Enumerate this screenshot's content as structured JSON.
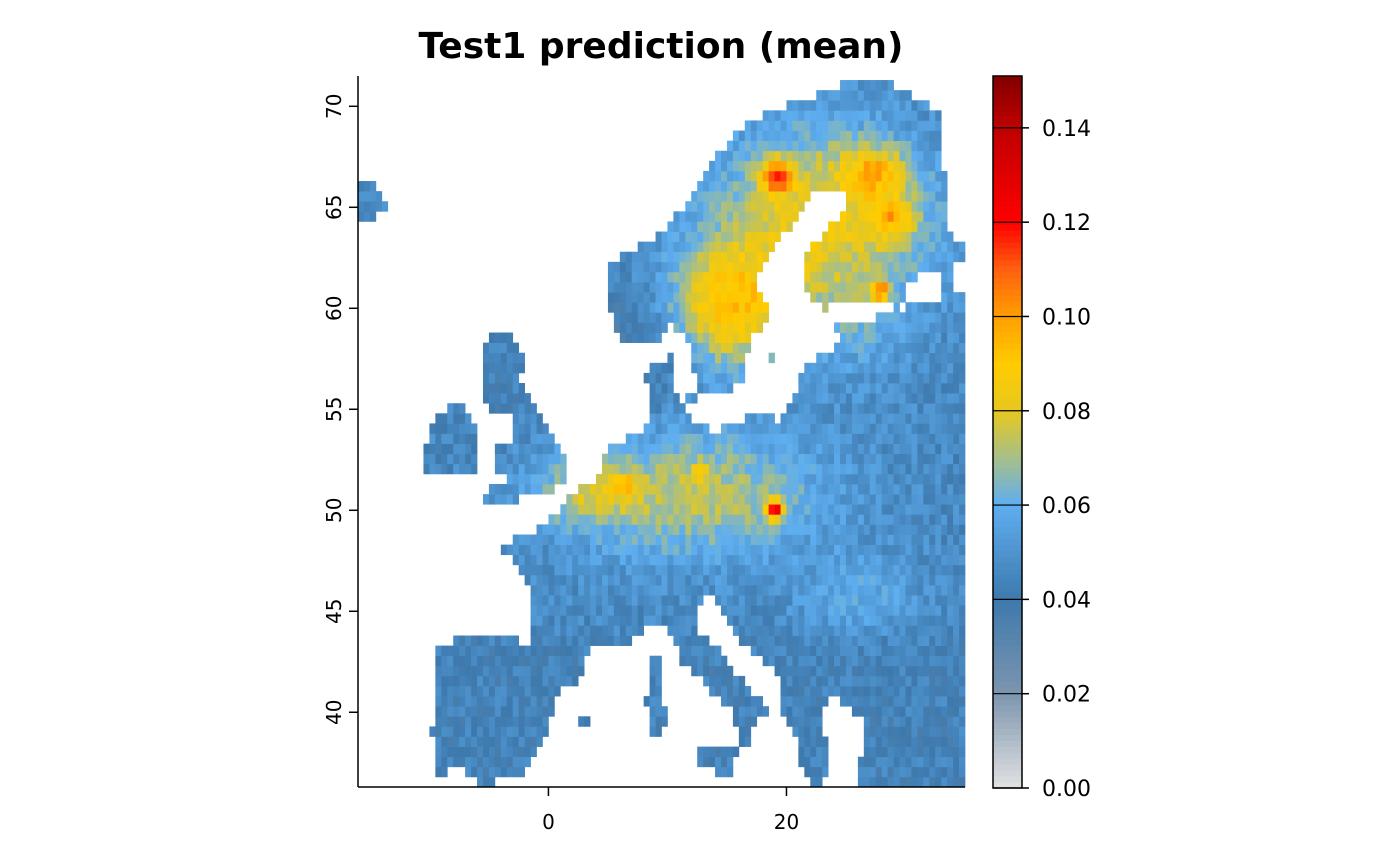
{
  "chart_data": {
    "type": "heatmap",
    "title": "Test1 prediction (mean)",
    "xlabel": "",
    "ylabel": "",
    "xlim": [
      -16,
      35
    ],
    "ylim": [
      36.3,
      71.5
    ],
    "x_ticks": [
      0,
      20
    ],
    "y_ticks": [
      40,
      45,
      50,
      55,
      60,
      65,
      70
    ],
    "grid": false,
    "region": "Europe",
    "colorbar": {
      "range": [
        0.0,
        0.151
      ],
      "ticks": [
        0.0,
        0.02,
        0.04,
        0.06,
        0.08,
        0.1,
        0.12,
        0.14
      ],
      "tick_labels": [
        "0.00",
        "0.02",
        "0.04",
        "0.06",
        "0.08",
        "0.10",
        "0.12",
        "0.14"
      ],
      "placement": "right",
      "color_stops": [
        {
          "value": 0.0,
          "color": "#e2e2e2"
        },
        {
          "value": 0.02,
          "color": "#7c95ae"
        },
        {
          "value": 0.04,
          "color": "#3e79ad"
        },
        {
          "value": 0.06,
          "color": "#5eaef0"
        },
        {
          "value": 0.07,
          "color": "#a6bf8a"
        },
        {
          "value": 0.08,
          "color": "#e6c81f"
        },
        {
          "value": 0.09,
          "color": "#ffcc00"
        },
        {
          "value": 0.1,
          "color": "#ff9f00"
        },
        {
          "value": 0.11,
          "color": "#ff6010"
        },
        {
          "value": 0.12,
          "color": "#ff0000"
        },
        {
          "value": 0.14,
          "color": "#c00000"
        },
        {
          "value": 0.151,
          "color": "#820000"
        }
      ]
    },
    "approx_values": {
      "iberia": 0.045,
      "western_europe": 0.055,
      "poland_germany": 0.078,
      "scandinavia_inland": 0.09,
      "peak": 0.15,
      "ocean": null
    }
  }
}
